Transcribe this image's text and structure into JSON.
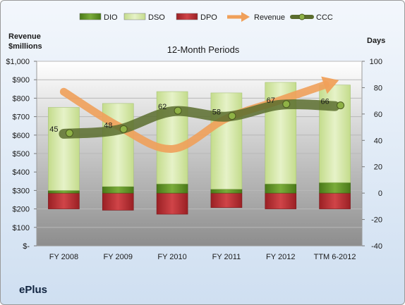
{
  "company": "ePlus",
  "chart_data": {
    "type": "bar",
    "title": "12-Month Periods",
    "categories": [
      "FY 2008",
      "FY 2009",
      "FY 2010",
      "FY 2011",
      "FY 2012",
      "TTM 6-2012"
    ],
    "left_axis": {
      "label_line1": "Revenue",
      "label_line2": "$millions",
      "ylim": [
        0,
        1000
      ],
      "ticks": [
        "$-",
        "$100",
        "$200",
        "$300",
        "$400",
        "$500",
        "$600",
        "$700",
        "$800",
        "$900",
        "$1,000"
      ]
    },
    "right_axis": {
      "label": "Days",
      "ylim": [
        -40,
        100
      ],
      "ticks": [
        "-40",
        "-20",
        "0",
        "20",
        "40",
        "60",
        "80",
        "100"
      ]
    },
    "legend": {
      "position": "top",
      "items": [
        {
          "name": "DIO",
          "color": "#5a8a22",
          "kind": "bar"
        },
        {
          "name": "DSO",
          "color": "#d4e8a8",
          "kind": "bar"
        },
        {
          "name": "DPO",
          "color": "#b42b30",
          "kind": "bar"
        },
        {
          "name": "Revenue",
          "color": "#f0a05a",
          "kind": "arrow"
        },
        {
          "name": "CCC",
          "color": "#5b6d2e",
          "kind": "line"
        }
      ]
    },
    "series": [
      {
        "name": "DIO",
        "axis": "right",
        "values": [
          2,
          5,
          7,
          3,
          7,
          8
        ]
      },
      {
        "name": "DSO",
        "axis": "right",
        "values": [
          63,
          63,
          70,
          73,
          77,
          74
        ]
      },
      {
        "name": "DPO",
        "axis": "right",
        "values": [
          -12,
          -13,
          -16,
          -11,
          -12,
          -12
        ]
      },
      {
        "name": "Revenue",
        "axis": "left",
        "values": [
          835,
          650,
          525,
          690,
          790,
          890
        ]
      },
      {
        "name": "CCC",
        "axis": "right",
        "values": [
          45,
          48,
          62,
          58,
          67,
          66
        ]
      }
    ],
    "data_labels": [
      "45",
      "48",
      "62",
      "58",
      "67",
      "66"
    ],
    "colors": {
      "dio": "#5a8a22",
      "dso": "#d4e8a8",
      "dpo": "#b42b30",
      "revenue": "#f0a05a",
      "ccc": "#5b6d2e",
      "ccc_marker": "#8fb246"
    }
  }
}
